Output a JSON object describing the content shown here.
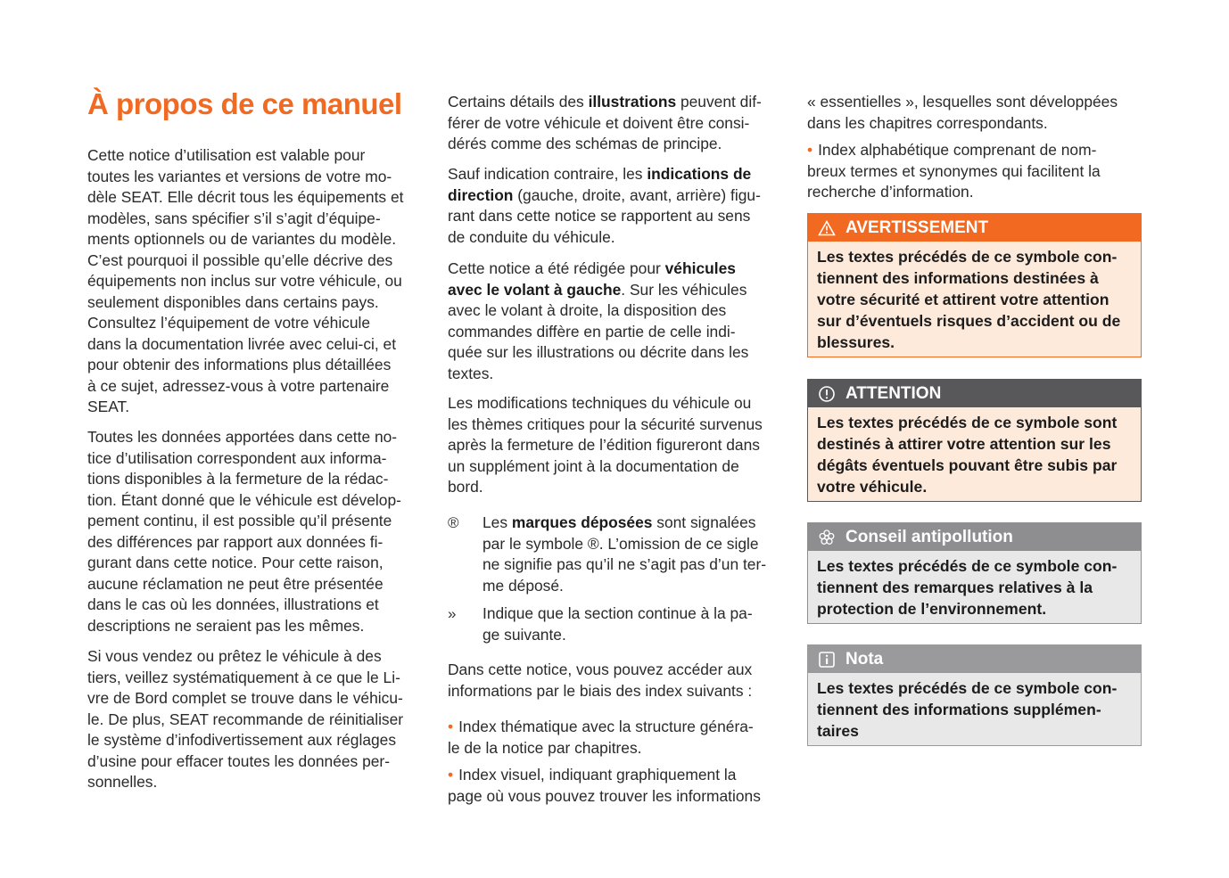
{
  "title": "À propos de ce manuel",
  "colors": {
    "accent": "#f26a21",
    "warning_bg": "#fdeadb",
    "attention_header": "#58585a",
    "grey_header": "#8e8e90",
    "grey_bg": "#e8e8e8"
  },
  "col1": [
    {
      "lines": [
        [
          "Cette notice d’utilisation est valable pour"
        ],
        [
          "toutes les variantes et versions de votre mo-"
        ],
        [
          "dèle SEAT. Elle décrit tous les équipements et"
        ],
        [
          "modèles, sans spécifier s’il s’agit d’équipe-"
        ],
        [
          "ments optionnels ou de variantes du modèle."
        ],
        [
          "C’est pourquoi il possible qu’elle décrive des"
        ],
        [
          "équipements non inclus sur votre véhicule, ou"
        ],
        [
          "seulement disponibles dans certains pays."
        ],
        [
          "Consultez l’équipement de votre véhicule"
        ],
        [
          "dans la documentation livrée avec celui-ci, et"
        ],
        [
          "pour obtenir des informations plus détaillées"
        ],
        [
          "à ce sujet, adressez-vous à votre partenaire"
        ],
        [
          "SEAT."
        ]
      ]
    },
    {
      "lines": [
        [
          "Toutes les données apportées dans cette no-"
        ],
        [
          "tice d’utilisation correspondent aux informa-"
        ],
        [
          "tions disponibles à la fermeture de la rédac-"
        ],
        [
          "tion. Étant donné que le véhicule est dévelop-"
        ],
        [
          "pement continu, il est possible qu’il présente"
        ],
        [
          "des différences par rapport aux données fi-"
        ],
        [
          "gurant dans cette notice. Pour cette raison,"
        ],
        [
          "aucune réclamation ne peut être présentée"
        ],
        [
          "dans le cas où les données, illustrations et"
        ],
        [
          "descriptions ne seraient pas les mêmes."
        ]
      ]
    },
    {
      "lines": [
        [
          "Si vous vendez ou prêtez le véhicule à des"
        ],
        [
          "tiers, veillez systématiquement à ce que le Li-"
        ],
        [
          "vre de Bord complet se trouve dans le véhicu-"
        ],
        [
          "le. De plus, SEAT recommande de réinitialiser"
        ],
        [
          "le système d’infodivertissement aux réglages"
        ],
        [
          "d’usine pour effacer toutes les données per-"
        ],
        [
          "sonnelles."
        ]
      ]
    }
  ],
  "col2": [
    {
      "lines": [
        [
          "Certains détails des ",
          "*illustrations",
          " peuvent dif-"
        ],
        [
          "férer de votre véhicule et doivent être consi-"
        ],
        [
          "dérés comme des schémas de principe."
        ]
      ]
    },
    {
      "lines": [
        [
          "Sauf indication contraire, les ",
          "*indications de"
        ],
        [
          "*direction",
          " (gauche, droite, avant, arrière) figu-"
        ],
        [
          "rant dans cette notice se rapportent au sens"
        ],
        [
          "de conduite du véhicule."
        ]
      ]
    },
    {
      "lines": [
        [
          "Cette notice a été rédigée pour ",
          "*véhicules"
        ],
        [
          "*avec le volant à gauche",
          ". Sur les véhicules"
        ],
        [
          "avec le volant à droite, la disposition des"
        ],
        [
          "commandes diffère en partie de celle indi-"
        ],
        [
          "quée sur les illustrations ou décrite dans les"
        ],
        [
          "textes."
        ]
      ]
    },
    {
      "lines": [
        [
          "Les modifications techniques du véhicule ou"
        ],
        [
          "les thèmes critiques pour la sécurité survenus"
        ],
        [
          "après la fermeture de l’édition figureront dans"
        ],
        [
          "un supplément joint à la documentation de"
        ],
        [
          "bord."
        ]
      ]
    }
  ],
  "symbols": [
    {
      "symbol": "®",
      "lines": [
        [
          "Les ",
          "*marques déposées",
          " sont signalées"
        ],
        [
          "par le symbole ®. L’omission de ce sigle"
        ],
        [
          "ne signifie pas qu’il ne s’agit pas d’un ter-"
        ],
        [
          "me déposé."
        ]
      ]
    },
    {
      "symbol": "»",
      "lines": [
        [
          "Indique que la section continue à la pa-"
        ],
        [
          "ge suivante."
        ]
      ]
    }
  ],
  "col2_end": [
    {
      "lines": [
        [
          "Dans cette notice, vous pouvez accéder aux"
        ],
        [
          "informations par le biais des index suivants :"
        ]
      ]
    },
    {
      "bullet": "•",
      "lines": [
        [
          "Index thématique avec la structure généra-"
        ],
        [
          "le de la notice par chapitres."
        ]
      ]
    },
    {
      "bullet": "•",
      "lines": [
        [
          "Index visuel, indiquant graphiquement la"
        ],
        [
          "page où vous pouvez trouver les informations"
        ]
      ]
    }
  ],
  "col3": [
    {
      "lines": [
        [
          "« essentielles », lesquelles sont développées"
        ],
        [
          "dans les chapitres correspondants."
        ]
      ]
    },
    {
      "bullet": "•",
      "lines": [
        [
          "Index alphabétique comprenant de nom-"
        ],
        [
          "breux termes et synonymes qui facilitent la"
        ],
        [
          "recherche d’information."
        ]
      ]
    }
  ],
  "boxes": [
    {
      "icon": "warning-triangle-icon",
      "title": "AVERTISSEMENT",
      "lines": [
        "Les textes précédés de ce symbole con-",
        "tiennent des informations destinées à",
        "votre sécurité et attirent votre attention",
        "sur d’éventuels risques d’accident ou de",
        "blessures."
      ]
    },
    {
      "icon": "exclamation-circle-icon",
      "title": "ATTENTION",
      "lines": [
        "Les textes précédés de ce symbole sont",
        "destinés à attirer votre attention sur les",
        "dégâts éventuels pouvant être subis par",
        "votre véhicule."
      ]
    },
    {
      "icon": "flower-icon",
      "title": "Conseil antipollution",
      "lines": [
        "Les textes précédés de ce symbole con-",
        "tiennent des remarques relatives à la",
        "protection de l’environnement."
      ]
    },
    {
      "icon": "info-icon",
      "title": "Nota",
      "lines": [
        "Les textes précédés de ce symbole con-",
        "tiennent des informations supplémen-",
        "taires"
      ]
    }
  ]
}
